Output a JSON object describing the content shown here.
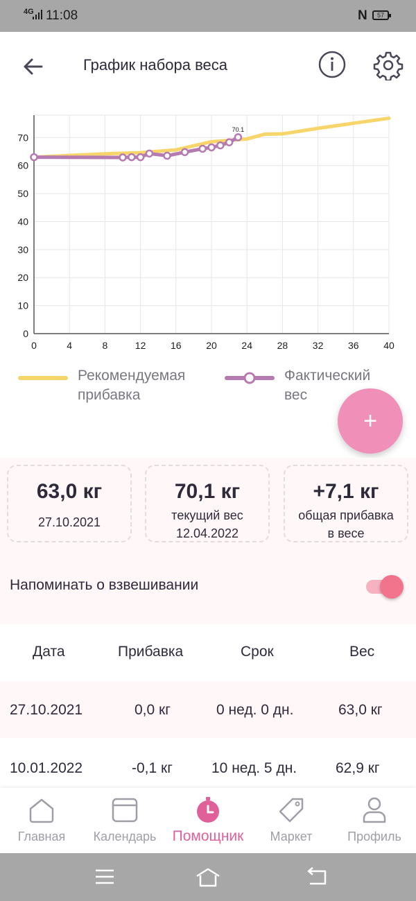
{
  "status": {
    "network": "4G",
    "time": "11:08",
    "battery": "57"
  },
  "header": {
    "title": "График набора веса"
  },
  "chart_data": {
    "type": "line",
    "x_ticks": [
      0,
      4,
      8,
      12,
      16,
      20,
      24,
      28,
      32,
      36,
      40
    ],
    "y_ticks": [
      0,
      10,
      20,
      30,
      40,
      50,
      60,
      70
    ],
    "xlim": [
      0,
      40
    ],
    "ylim": [
      0,
      78
    ],
    "grid": true,
    "legend_position": "bottom",
    "series": [
      {
        "name": "Рекомендуемая прибавка",
        "color": "#f7d56a",
        "x": [
          0,
          4,
          8,
          12,
          16,
          20,
          24,
          26,
          28,
          32,
          36,
          40
        ],
        "y": [
          63,
          63.6,
          64.2,
          64.6,
          65.6,
          68.5,
          69.5,
          71.2,
          71.3,
          73.3,
          75.1,
          76.9
        ]
      },
      {
        "name": "Фактический вес",
        "color": "#b57ab0",
        "x": [
          0,
          10,
          11,
          12,
          13,
          15,
          17,
          19,
          20,
          21,
          22,
          23
        ],
        "y": [
          63,
          62.9,
          63,
          63,
          64.3,
          63.5,
          64.8,
          66,
          66.5,
          67.2,
          68.3,
          70.1
        ]
      }
    ],
    "annotations": [
      {
        "x": 23,
        "y": 70.1,
        "text": "70.1"
      }
    ]
  },
  "summary": {
    "cards": [
      {
        "value": "63,0 кг",
        "line1": "27.10.2021",
        "line2": ""
      },
      {
        "value": "70,1 кг",
        "line1": "текущий вес",
        "line2": "12.04.2022"
      },
      {
        "value": "+7,1 кг",
        "line1": "общая прибавка",
        "line2": "в весе"
      }
    ],
    "reminder_label": "Напоминать о взвешивании",
    "reminder_on": true
  },
  "table": {
    "headers": [
      "Дата",
      "Прибавка",
      "Срок",
      "Вес"
    ],
    "rows": [
      [
        "27.10.2021",
        "0,0 кг",
        "0 нед. 0 дн.",
        "63,0 кг"
      ],
      [
        "10.01.2022",
        "-0,1 кг",
        "10 нед. 5 дн.",
        "62,9 кг"
      ]
    ]
  },
  "fab": {
    "label": "+"
  },
  "tabs": [
    {
      "label": "Главная",
      "icon": "home-icon",
      "active": false
    },
    {
      "label": "Календарь",
      "icon": "calendar-icon",
      "active": false
    },
    {
      "label": "Помощник",
      "icon": "assistant-clock-icon",
      "active": true
    },
    {
      "label": "Маркет",
      "icon": "tag-icon",
      "active": false
    },
    {
      "label": "Профиль",
      "icon": "profile-icon",
      "active": false
    }
  ]
}
